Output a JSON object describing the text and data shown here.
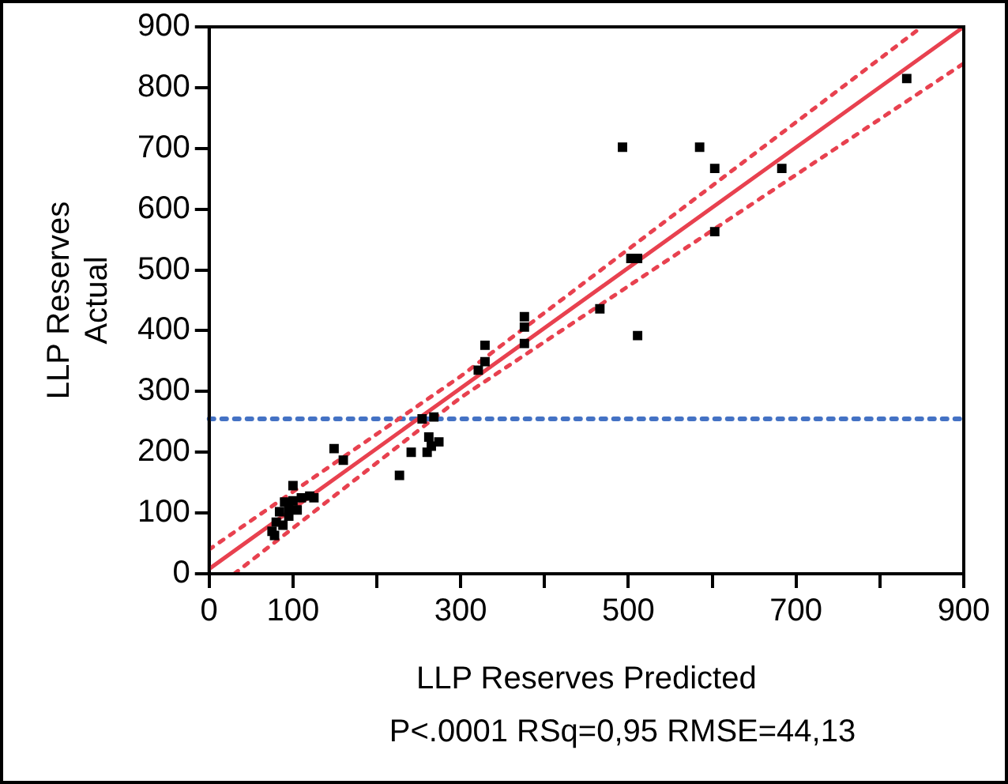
{
  "chart_data": {
    "type": "scatter",
    "xlabel": "LLP Reserves Predicted",
    "ylabel": "LLP Reserves\nActual",
    "annotations": [
      "P<.0001 RSq=0,95 RMSE=44,13"
    ],
    "xlim": [
      0,
      900
    ],
    "ylim": [
      0,
      900
    ],
    "xticks": [
      0,
      100,
      {
        "value": 200,
        "label": null
      },
      300,
      {
        "value": 400,
        "label": null
      },
      500,
      {
        "value": 600,
        "label": null
      },
      700,
      {
        "value": 800,
        "label": null
      },
      900
    ],
    "yticks": [
      0,
      100,
      200,
      300,
      400,
      500,
      600,
      700,
      800,
      900
    ],
    "grid": false,
    "legend": false,
    "marker": "square",
    "series": [
      {
        "color": "#000000",
        "x": [
          493,
          585,
          603,
          683,
          832,
          603,
          503,
          511,
          466,
          511,
          376,
          376,
          376,
          329,
          329,
          321,
          268,
          274,
          254,
          262,
          241,
          260,
          227,
          149,
          160,
          100,
          90,
          84,
          78,
          95,
          100,
          105,
          110,
          120,
          125,
          80,
          95,
          75,
          88,
          265
        ],
        "values": [
          702,
          702,
          667,
          667,
          815,
          563,
          519,
          519,
          436,
          392,
          423,
          406,
          379,
          376,
          349,
          335,
          258,
          217,
          255,
          225,
          200,
          200,
          162,
          206,
          187,
          145,
          118,
          102,
          63,
          110,
          120,
          105,
          125,
          128,
          125,
          85,
          95,
          70,
          80,
          210
        ]
      },
      {
        "type": "line",
        "color": "#e8414f",
        "marker": "none",
        "line_style": "solid",
        "x": [
          0,
          900
        ],
        "values": [
          8,
          900
        ]
      },
      {
        "type": "line",
        "color": "#e8414f",
        "marker": "none",
        "line_style": "dotted",
        "x": [
          0,
          300,
          850
        ],
        "values": [
          40,
          325,
          900
        ]
      },
      {
        "type": "line",
        "color": "#e8414f",
        "marker": "none",
        "line_style": "dotted",
        "x": [
          30,
          300,
          900
        ],
        "values": [
          0,
          290,
          840
        ]
      }
    ],
    "ref_lines": [
      {
        "axis": "y",
        "value": 255,
        "color": "#4472c4",
        "line_style": "dotted"
      }
    ]
  }
}
